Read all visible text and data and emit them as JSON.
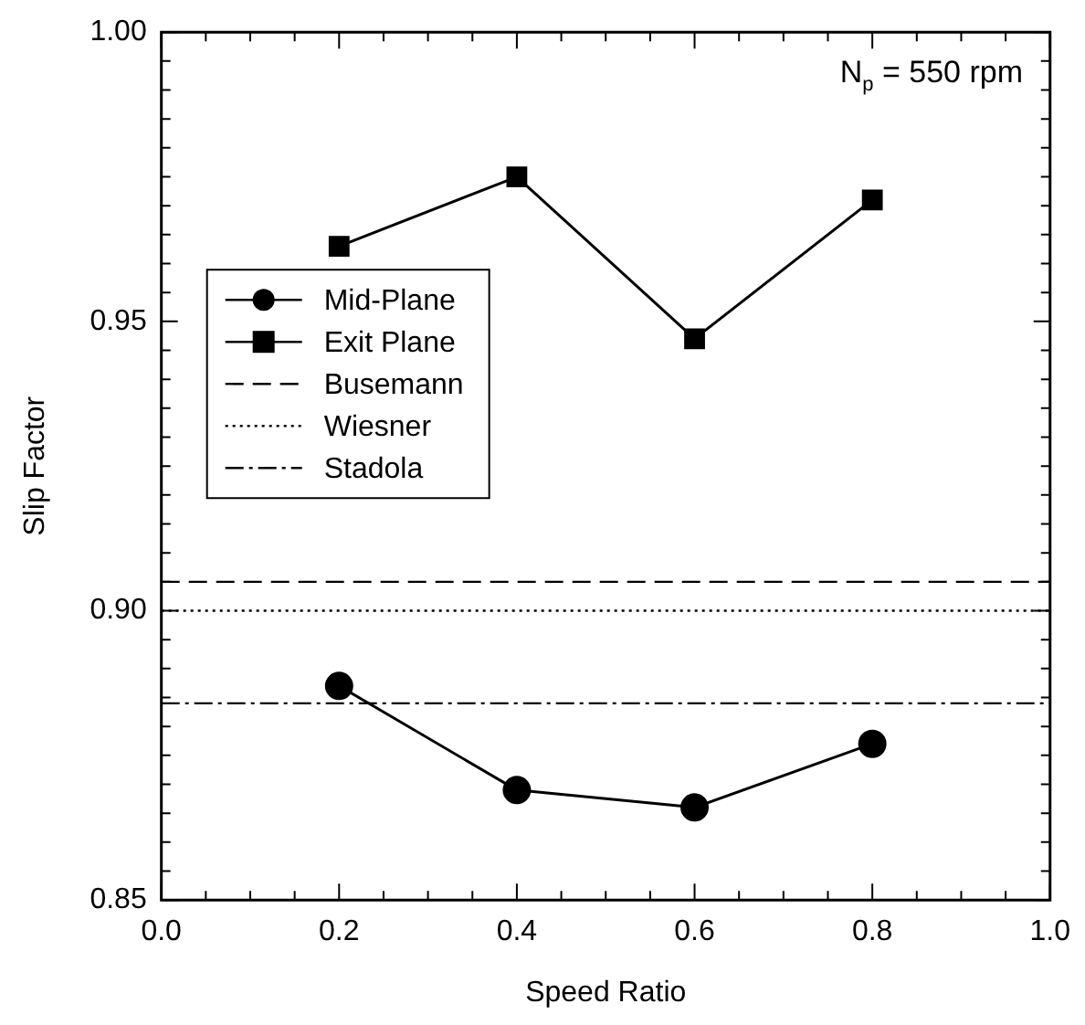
{
  "chart_data": {
    "type": "line",
    "xlabel": "Speed Ratio",
    "ylabel": "Slip Factor",
    "x": [
      0.2,
      0.4,
      0.6,
      0.8
    ],
    "series": [
      {
        "name": "Mid-Plane",
        "color": "#000000",
        "marker": "circle",
        "values": [
          0.887,
          0.869,
          0.866,
          0.877
        ]
      },
      {
        "name": "Exit Plane",
        "color": "#000000",
        "marker": "square",
        "values": [
          0.963,
          0.975,
          0.947,
          0.971
        ]
      }
    ],
    "ref_lines": [
      {
        "axis": "y",
        "value": 0.905,
        "label": "Busemann",
        "color": "#000000",
        "line_style": "dashed"
      },
      {
        "axis": "y",
        "value": 0.9,
        "label": "Wiesner",
        "color": "#000000",
        "line_style": "dotted"
      },
      {
        "axis": "y",
        "value": 0.884,
        "label": "Stadola",
        "color": "#000000",
        "line_style": "dashdot"
      }
    ],
    "annotations": [
      "N$_{p}$ = 550 rpm"
    ],
    "xlim": [
      0,
      1
    ],
    "ylim": [
      0.85,
      1
    ],
    "xticks": [
      {
        "value": 0,
        "label": "0.0"
      },
      {
        "value": 0.05,
        "label": null
      },
      {
        "value": 0.1,
        "label": null
      },
      {
        "value": 0.15,
        "label": null
      },
      {
        "value": 0.2,
        "label": "0.2"
      },
      {
        "value": 0.25,
        "label": null
      },
      {
        "value": 0.3,
        "label": null
      },
      {
        "value": 0.35,
        "label": null
      },
      {
        "value": 0.4,
        "label": "0.4"
      },
      {
        "value": 0.45,
        "label": null
      },
      {
        "value": 0.5,
        "label": null
      },
      {
        "value": 0.55,
        "label": null
      },
      {
        "value": 0.6,
        "label": "0.6"
      },
      {
        "value": 0.65,
        "label": null
      },
      {
        "value": 0.7,
        "label": null
      },
      {
        "value": 0.75,
        "label": null
      },
      {
        "value": 0.8,
        "label": "0.8"
      },
      {
        "value": 0.85,
        "label": null
      },
      {
        "value": 0.9,
        "label": null
      },
      {
        "value": 0.95,
        "label": null
      },
      {
        "value": 1,
        "label": "1.0"
      }
    ],
    "yticks": [
      {
        "value": 0.85,
        "label": "0.85"
      },
      {
        "value": 0.855,
        "label": null
      },
      {
        "value": 0.86,
        "label": null
      },
      {
        "value": 0.865,
        "label": null
      },
      {
        "value": 0.87,
        "label": null
      },
      {
        "value": 0.875,
        "label": null
      },
      {
        "value": 0.88,
        "label": null
      },
      {
        "value": 0.885,
        "label": null
      },
      {
        "value": 0.89,
        "label": null
      },
      {
        "value": 0.895,
        "label": null
      },
      {
        "value": 0.9,
        "label": "0.90"
      },
      {
        "value": 0.905,
        "label": null
      },
      {
        "value": 0.91,
        "label": null
      },
      {
        "value": 0.915,
        "label": null
      },
      {
        "value": 0.92,
        "label": null
      },
      {
        "value": 0.925,
        "label": null
      },
      {
        "value": 0.93,
        "label": null
      },
      {
        "value": 0.935,
        "label": null
      },
      {
        "value": 0.94,
        "label": null
      },
      {
        "value": 0.945,
        "label": null
      },
      {
        "value": 0.95,
        "label": "0.95"
      },
      {
        "value": 0.955,
        "label": null
      },
      {
        "value": 0.96,
        "label": null
      },
      {
        "value": 0.965,
        "label": null
      },
      {
        "value": 0.97,
        "label": null
      },
      {
        "value": 0.975,
        "label": null
      },
      {
        "value": 0.98,
        "label": null
      },
      {
        "value": 0.985,
        "label": null
      },
      {
        "value": 0.99,
        "label": null
      },
      {
        "value": 0.995,
        "label": null
      },
      {
        "value": 1,
        "label": "1.00"
      }
    ],
    "grid": false,
    "legend": "center left",
    "line_style": "solid"
  }
}
